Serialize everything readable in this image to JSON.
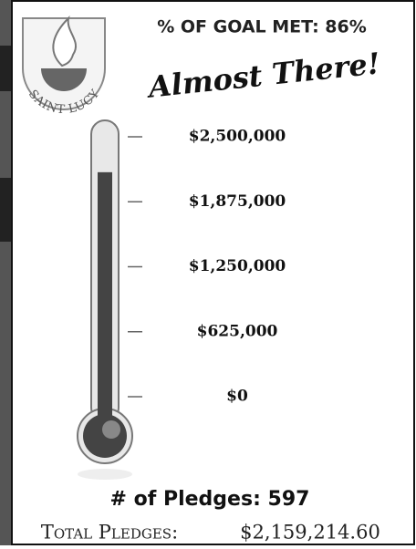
{
  "chart_data": {
    "type": "thermometer",
    "title": "% OF GOAL MET: 86%",
    "subtitle": "Almost There!",
    "logo_text": "SAINT LUCY",
    "values": [
      2159214.6
    ],
    "value_labels": [
      "$2,159,214.60"
    ],
    "color": "#444444",
    "ylim": [
      0,
      2500000
    ],
    "yticks": [
      {
        "value": 0,
        "label": "$0"
      },
      {
        "value": 625000,
        "label": "$625,000"
      },
      {
        "value": 1250000,
        "label": "$1,250,000"
      },
      {
        "value": 1875000,
        "label": "$1,875,000"
      },
      {
        "value": 2500000,
        "label": "$2,500,000"
      }
    ],
    "annotations": [
      "# of Pledges: 597",
      "Total Pledges:"
    ]
  }
}
